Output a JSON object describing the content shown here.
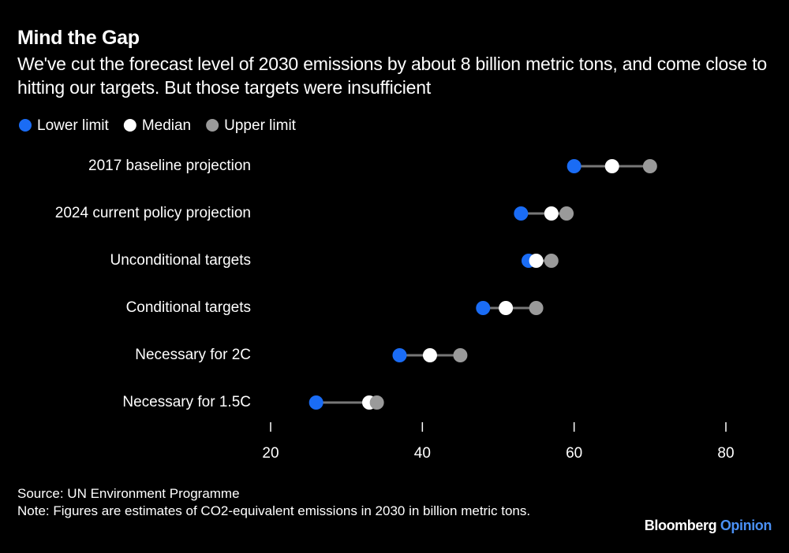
{
  "chart_data": {
    "type": "dot",
    "title": "Mind the Gap",
    "subtitle": "We've cut the forecast level of 2030 emissions by about 8 billion metric tons, and come close to hitting our targets. But those targets were insufficient",
    "categories": [
      "2017 baseline projection",
      "2024 current policy projection",
      "Unconditional targets",
      "Conditional targets",
      "Necessary for 2C",
      "Necessary for 1.5C"
    ],
    "series": [
      {
        "name": "Lower limit",
        "color": "#1a6cf5",
        "values": [
          60,
          53,
          54,
          48,
          37,
          26
        ]
      },
      {
        "name": "Median",
        "color": "#ffffff",
        "values": [
          65,
          57,
          55,
          51,
          41,
          33
        ]
      },
      {
        "name": "Upper limit",
        "color": "#9a9a9a",
        "values": [
          70,
          59,
          57,
          55,
          45,
          34
        ]
      }
    ],
    "xlim": [
      20,
      80
    ],
    "xticks": [
      20,
      40,
      60,
      80
    ],
    "source": "Source: UN Environment Programme",
    "note": "Note: Figures are estimates of CO2-equivalent emissions in 2030 in billion metric tons.",
    "brand": {
      "name": "Bloomberg",
      "section": "Opinion"
    }
  }
}
